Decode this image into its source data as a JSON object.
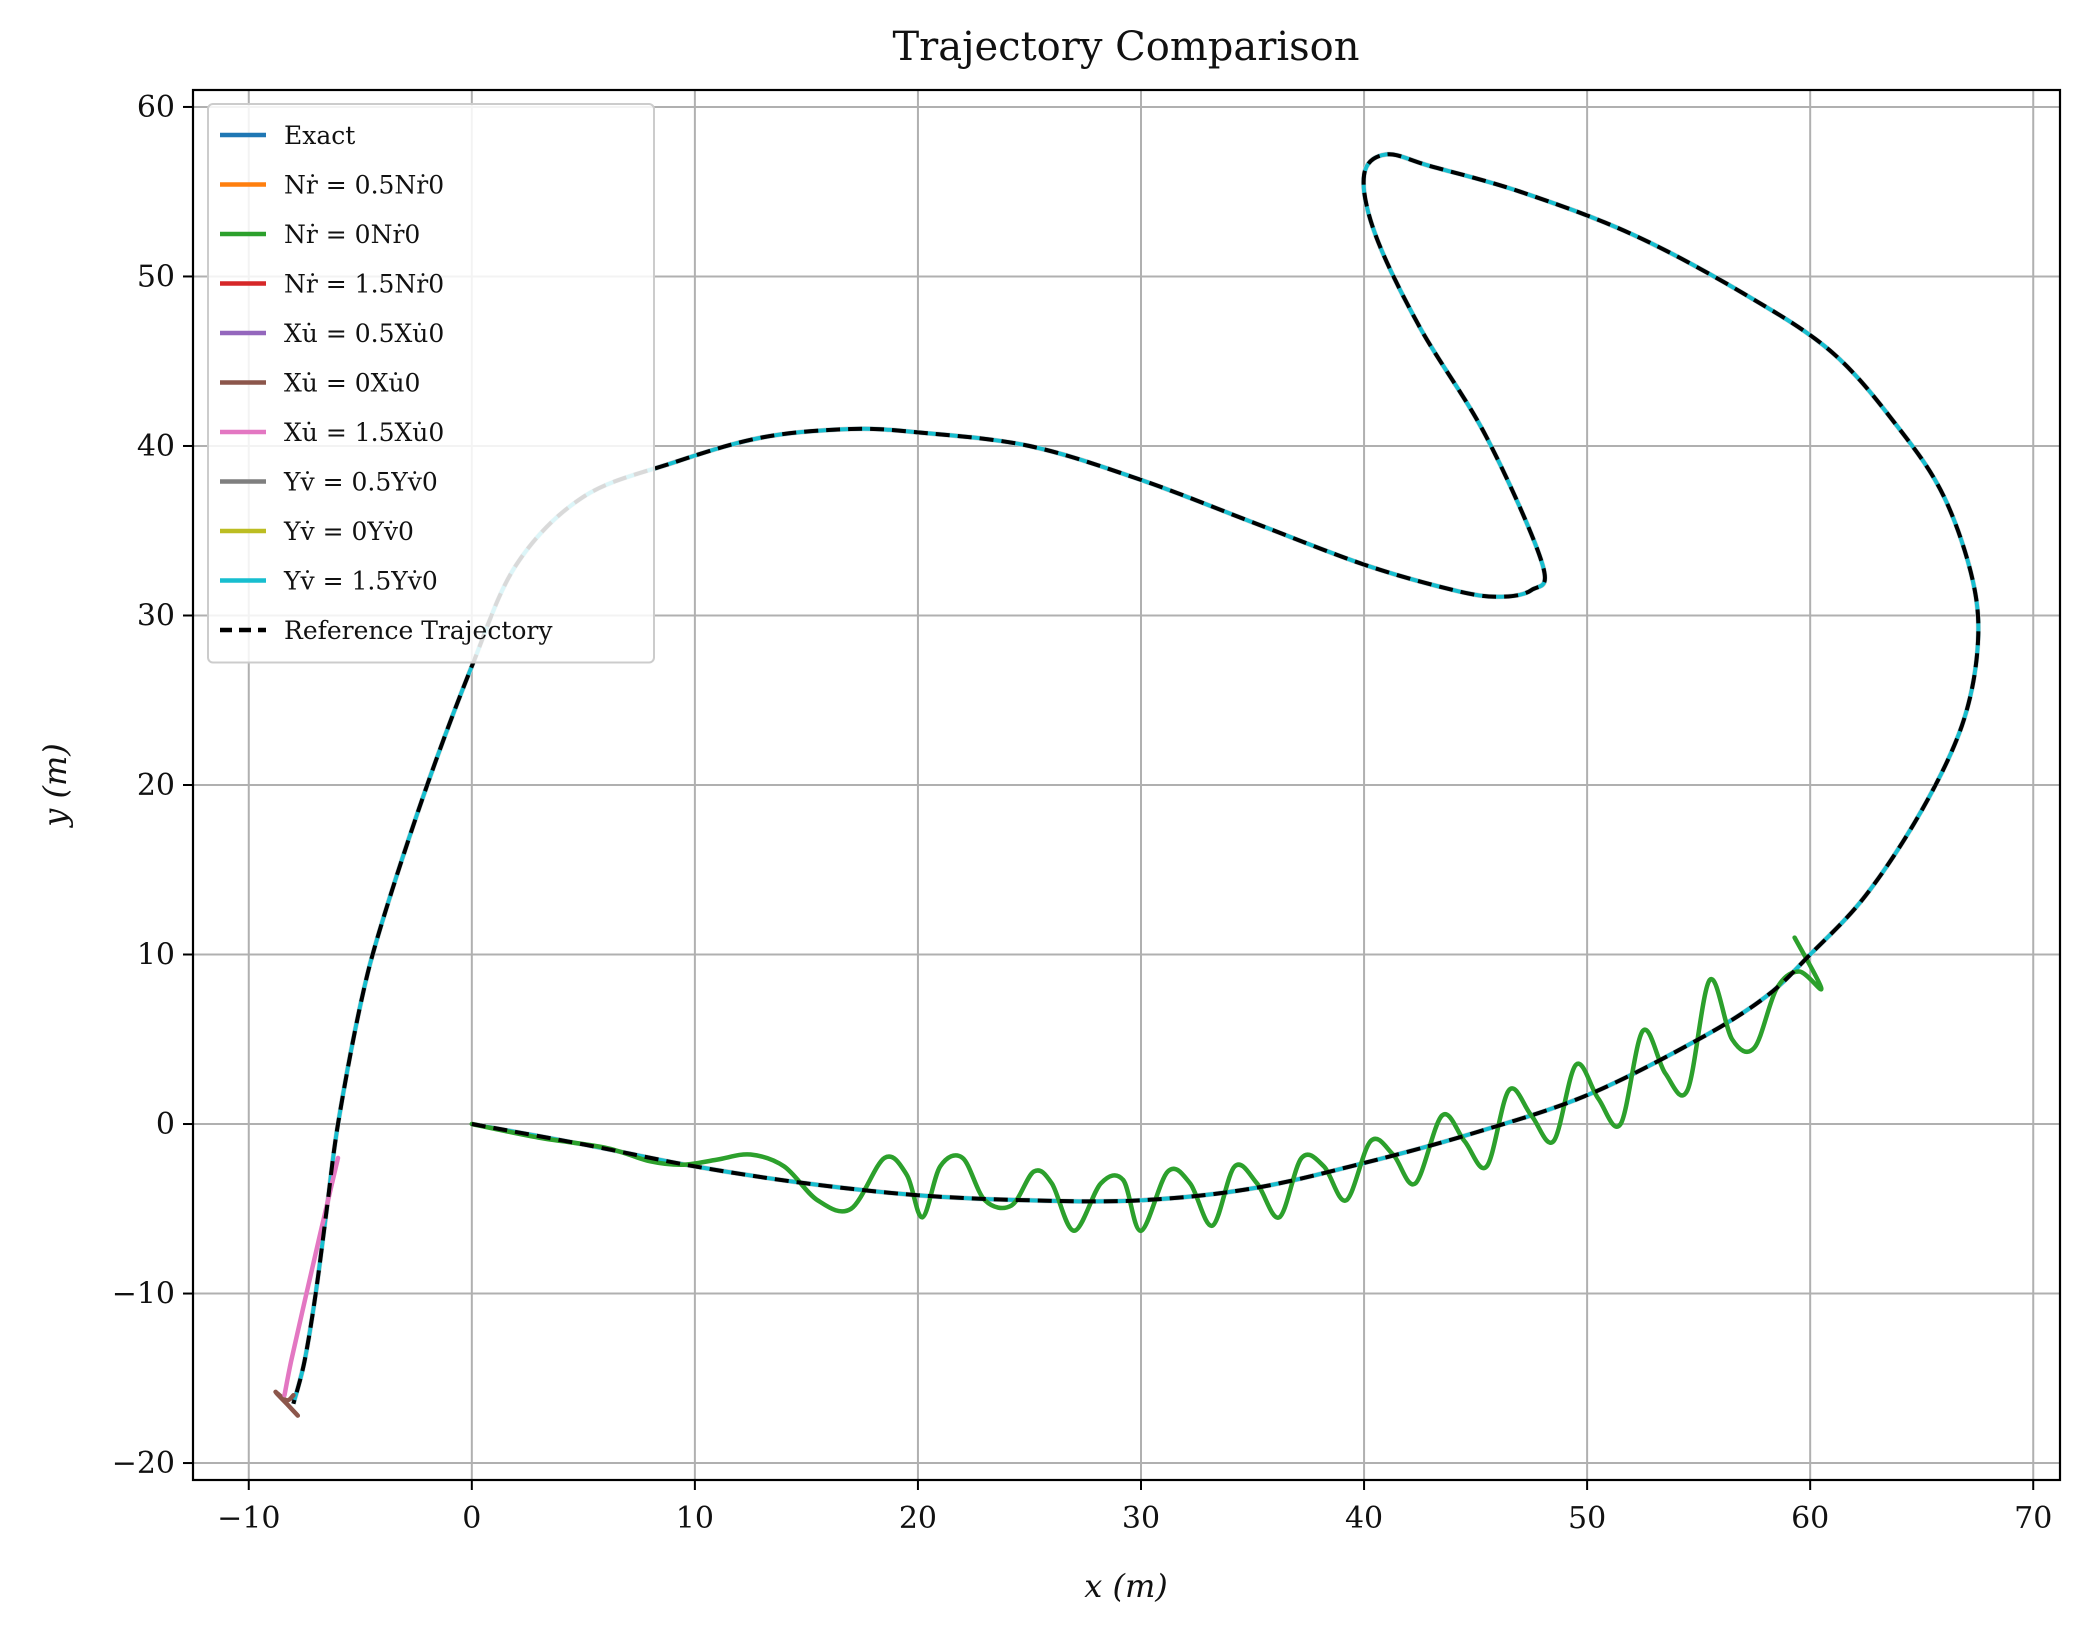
{
  "chart_data": {
    "type": "line",
    "title": "Trajectory Comparison",
    "xlabel": "x (m)",
    "ylabel": "y (m)",
    "xlim": [
      -12.5,
      71.2
    ],
    "ylim": [
      -21.0,
      61.0
    ],
    "xticks": [
      -10,
      0,
      10,
      20,
      30,
      40,
      50,
      60,
      70
    ],
    "yticks": [
      -20,
      -10,
      0,
      10,
      20,
      30,
      40,
      50,
      60
    ],
    "xtick_labels": [
      "−10",
      "0",
      "10",
      "20",
      "30",
      "40",
      "50",
      "60",
      "70"
    ],
    "ytick_labels": [
      "−20",
      "−10",
      "0",
      "10",
      "20",
      "30",
      "40",
      "50",
      "60"
    ],
    "grid": true,
    "legend_position": "top-left",
    "legend": [
      {
        "label": "Exact",
        "color": "#1f77b4",
        "dashed": false
      },
      {
        "label": "Nṙ = 0.5Nṙ0",
        "color": "#ff7f0e",
        "dashed": false
      },
      {
        "label": "Nṙ = 0Nṙ0",
        "color": "#2ca02c",
        "dashed": false
      },
      {
        "label": "Nṙ = 1.5Nṙ0",
        "color": "#d62728",
        "dashed": false
      },
      {
        "label": "Xu̇ = 0.5Xu̇0",
        "color": "#9467bd",
        "dashed": false
      },
      {
        "label": "Xu̇ = 0Xu̇0",
        "color": "#8c564b",
        "dashed": false
      },
      {
        "label": "Xu̇ = 1.5Xu̇0",
        "color": "#e377c2",
        "dashed": false
      },
      {
        "label": "Yv̇ = 0.5Yv̇0",
        "color": "#7f7f7f",
        "dashed": false
      },
      {
        "label": "Yv̇ = 0Yv̇0",
        "color": "#bcbd22",
        "dashed": false
      },
      {
        "label": "Yv̇ = 1.5Yv̇0",
        "color": "#17becf",
        "dashed": false
      },
      {
        "label": "Reference Trajectory",
        "color": "#000000",
        "dashed": true
      }
    ],
    "reference_path": {
      "x": [
        0,
        5,
        10,
        15,
        20,
        25,
        30,
        35,
        40,
        45,
        50,
        55,
        58,
        60,
        62.5,
        65,
        66.8,
        67.5,
        67.3,
        66,
        64,
        61,
        57,
        52,
        47,
        43,
        41,
        40,
        40.5,
        42.5,
        45.5,
        48,
        47.5,
        46,
        44,
        40,
        35,
        30,
        25,
        20,
        17,
        13,
        9,
        5,
        2,
        0,
        -2,
        -4,
        -5,
        -6,
        -6.5,
        -7,
        -7.5,
        -8
      ],
      "y": [
        0,
        -1.2,
        -2.5,
        -3.5,
        -4.2,
        -4.5,
        -4.5,
        -3.8,
        -2.3,
        -0.5,
        1.7,
        5,
        7.5,
        10,
        13.5,
        18.5,
        23.5,
        28,
        32,
        37,
        41,
        45.5,
        49,
        52.5,
        55,
        56.5,
        57.2,
        56,
        52.5,
        47,
        40.5,
        33,
        31.5,
        31.1,
        31.5,
        33,
        35.5,
        38,
        40,
        40.8,
        41,
        40.5,
        39,
        37,
        33,
        27,
        20,
        12,
        7,
        0,
        -5,
        -10,
        -14,
        -16.5
      ]
    },
    "series": [
      {
        "name": "Nṙ = 0Nṙ0",
        "color": "#2ca02c",
        "x": [
          0,
          3,
          6,
          8,
          9.5,
          11,
          12.5,
          14,
          15.5,
          17,
          18.5,
          19.5,
          20.2,
          21,
          22,
          23,
          24.2,
          25.2,
          26,
          27,
          28.2,
          29.2,
          30,
          31.2,
          32.2,
          33.2,
          34.2,
          35.2,
          36.2,
          37.2,
          38.2,
          39.2,
          40.3,
          41.3,
          42.3,
          43.5,
          44.5,
          45.5,
          46.5,
          47.5,
          48.5,
          49.5,
          50.5,
          51.5,
          52.5,
          53.5,
          54.5,
          55.5,
          56.5,
          57.5,
          58.5,
          59.5,
          60.5,
          59.3
        ],
        "y": [
          0,
          -0.8,
          -1.4,
          -2.2,
          -2.4,
          -2.1,
          -1.8,
          -2.5,
          -4.5,
          -5.0,
          -2.0,
          -3.0,
          -5.5,
          -2.5,
          -2.0,
          -4.5,
          -4.8,
          -2.8,
          -3.5,
          -6.3,
          -3.5,
          -3.3,
          -6.3,
          -2.8,
          -3.5,
          -6.0,
          -2.5,
          -3.5,
          -5.5,
          -2.0,
          -2.5,
          -4.5,
          -1.0,
          -1.8,
          -3.5,
          0.5,
          -1.0,
          -2.5,
          2.0,
          0.5,
          -1.0,
          3.5,
          1.5,
          0.0,
          5.5,
          3.0,
          2.0,
          8.5,
          5.0,
          4.5,
          8.0,
          9.0,
          8.0,
          11.0
        ]
      },
      {
        "name": "Xu̇ = 0Xu̇0",
        "color": "#8c564b",
        "x": [
          -8.0,
          -8.3,
          -8.8,
          -8.3,
          -7.8
        ],
        "y": [
          -16.0,
          -16.3,
          -15.8,
          -16.5,
          -17.2
        ]
      },
      {
        "name": "Xu̇ = 1.5Xu̇0",
        "color": "#e377c2",
        "x": [
          -6.0,
          -6.8,
          -7.5,
          -8.1,
          -8.4
        ],
        "y": [
          -2.0,
          -6.5,
          -10.5,
          -14.0,
          -16.0
        ]
      }
    ]
  }
}
